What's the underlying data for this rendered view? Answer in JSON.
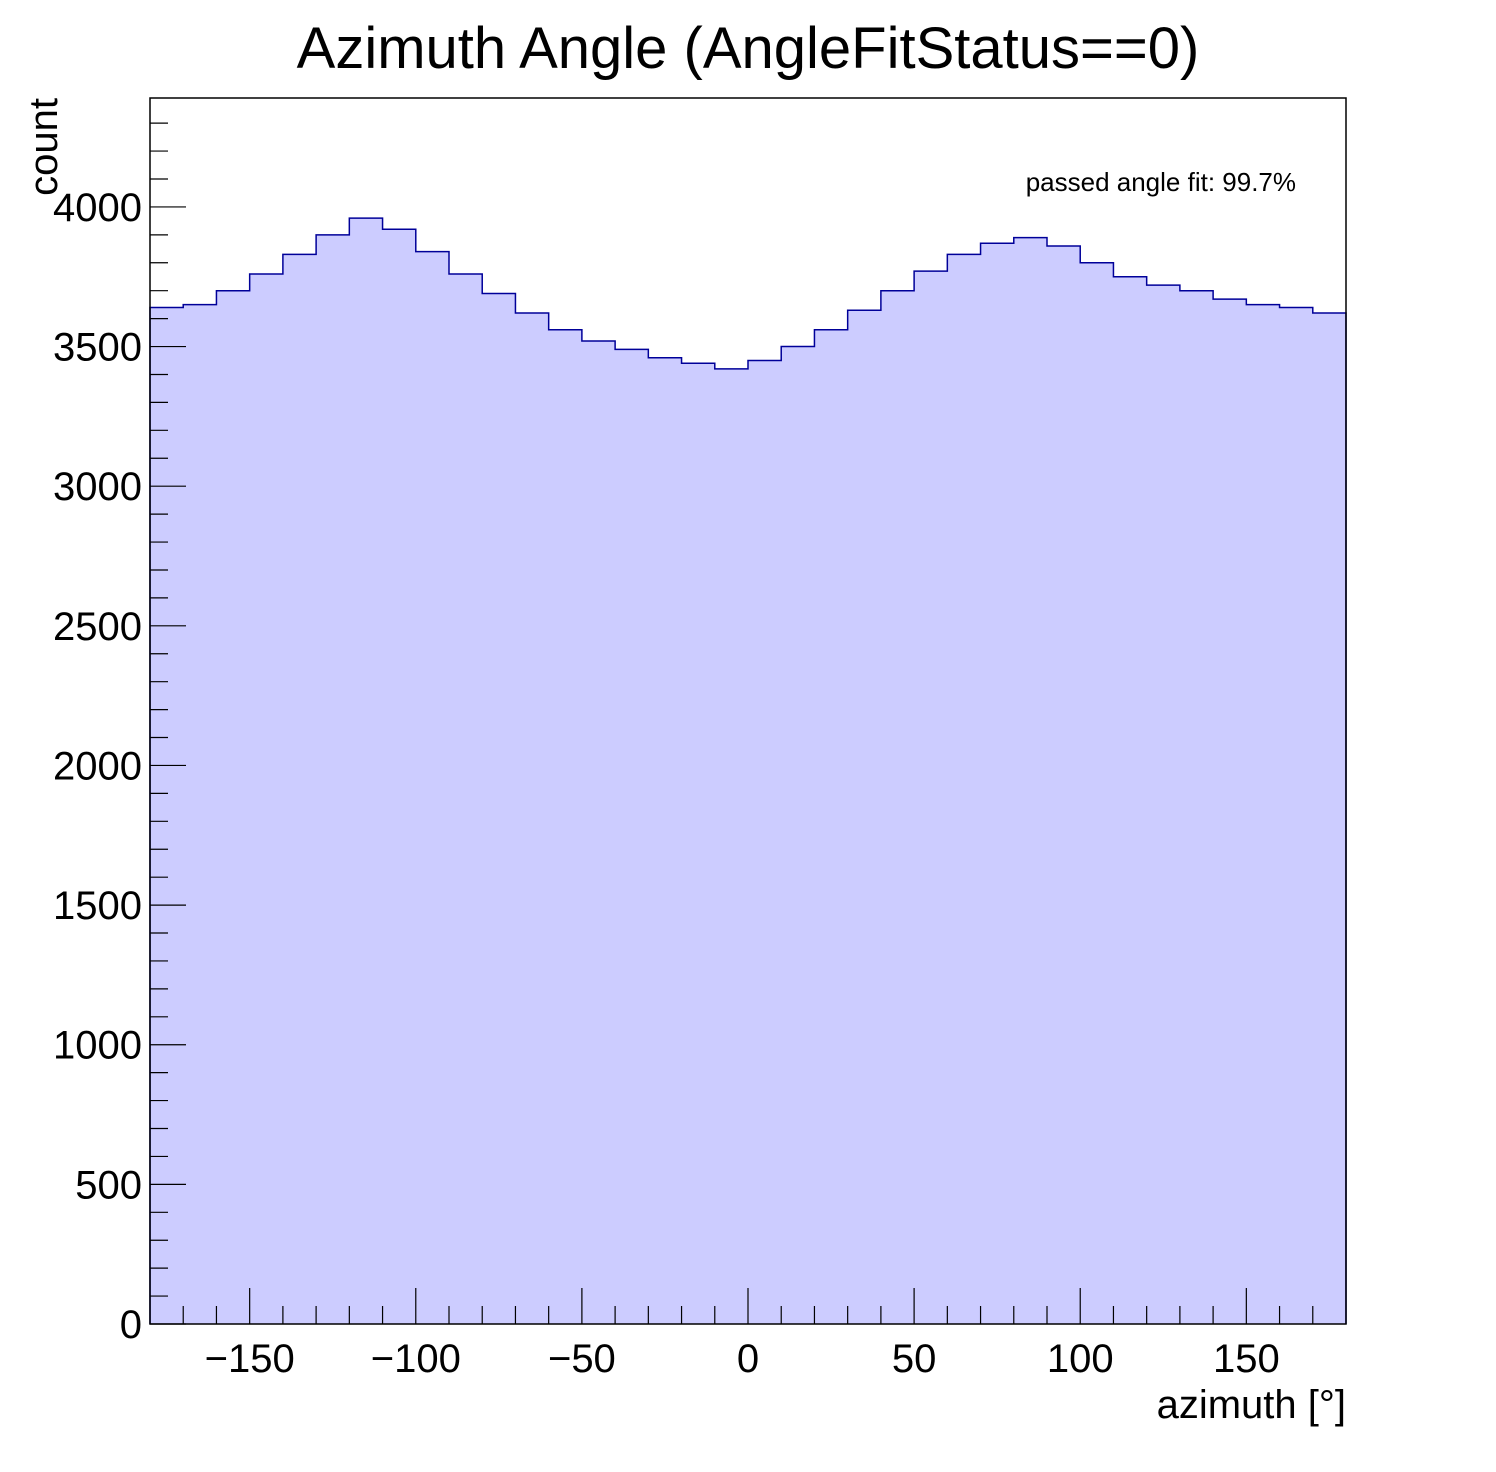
{
  "chart_data": {
    "type": "histogram",
    "title": "Azimuth Angle (AngleFitStatus==0)",
    "xlabel": "azimuth [°]",
    "ylabel": "count",
    "xlim": [
      -180,
      180
    ],
    "ylim": [
      0,
      4390
    ],
    "x_ticks": [
      -150,
      -100,
      -50,
      0,
      50,
      100,
      150
    ],
    "x_tick_labels": [
      "−150",
      "−100",
      "−50",
      "0",
      "50",
      "100",
      "150"
    ],
    "y_ticks": [
      0,
      500,
      1000,
      1500,
      2000,
      2500,
      3000,
      3500,
      4000
    ],
    "y_tick_labels": [
      "0",
      "500",
      "1000",
      "1500",
      "2000",
      "2500",
      "3000",
      "3500",
      "4000"
    ],
    "annotation": "passed angle fit: 99.7%",
    "bin_width": 10,
    "bin_centers": [
      -175,
      -165,
      -155,
      -145,
      -135,
      -125,
      -115,
      -105,
      -95,
      -85,
      -75,
      -65,
      -55,
      -45,
      -35,
      -25,
      -15,
      -5,
      5,
      15,
      25,
      35,
      45,
      55,
      65,
      75,
      85,
      95,
      105,
      115,
      125,
      135,
      145,
      155,
      165,
      175
    ],
    "values": [
      3640,
      3650,
      3700,
      3760,
      3830,
      3900,
      3960,
      3920,
      3840,
      3760,
      3690,
      3620,
      3560,
      3520,
      3490,
      3460,
      3440,
      3420,
      3450,
      3500,
      3560,
      3630,
      3700,
      3770,
      3830,
      3870,
      3890,
      3860,
      3800,
      3750,
      3720,
      3700,
      3670,
      3650,
      3640,
      3620
    ],
    "grid": false,
    "colors": {
      "fill": "#ccccff",
      "line": "#000099",
      "frame": "#000000"
    }
  }
}
